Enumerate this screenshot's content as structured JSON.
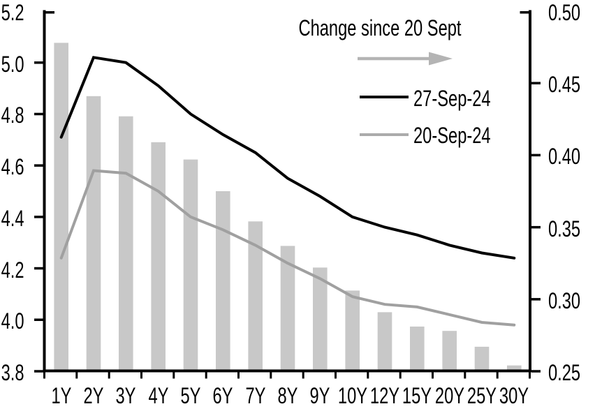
{
  "chart_data": {
    "type": "combo-bar-line",
    "title": "",
    "xlabel": "",
    "ylabel": "",
    "categories": [
      "1Y",
      "2Y",
      "3Y",
      "4Y",
      "5Y",
      "6Y",
      "7Y",
      "8Y",
      "9Y",
      "10Y",
      "12Y",
      "15Y",
      "20Y",
      "25Y",
      "30Y"
    ],
    "series": [
      {
        "name": "Change since 20 Sept",
        "type": "bar",
        "axis": "right",
        "color": "#c8c8c8",
        "values": [
          0.478,
          0.441,
          0.427,
          0.409,
          0.397,
          0.375,
          0.354,
          0.337,
          0.322,
          0.306,
          0.291,
          0.281,
          0.278,
          0.267,
          0.254
        ]
      },
      {
        "name": "27-Sep-24",
        "type": "line",
        "axis": "left",
        "color": "#000000",
        "values": [
          4.71,
          5.02,
          5.0,
          4.91,
          4.8,
          4.72,
          4.65,
          4.55,
          4.48,
          4.4,
          4.36,
          4.33,
          4.29,
          4.26,
          4.24
        ]
      },
      {
        "name": "20-Sep-24",
        "type": "line",
        "axis": "left",
        "color": "#a0a0a0",
        "values": [
          4.24,
          4.58,
          4.57,
          4.5,
          4.4,
          4.35,
          4.29,
          4.22,
          4.16,
          4.09,
          4.06,
          4.05,
          4.02,
          3.99,
          3.98
        ]
      }
    ],
    "left_axis": {
      "min": 3.8,
      "max": 5.2,
      "step": 0.2,
      "ticks": [
        "5.2",
        "5.0",
        "4.8",
        "4.6",
        "4.4",
        "4.2",
        "4.0",
        "3.8"
      ]
    },
    "right_axis": {
      "min": 0.25,
      "max": 0.5,
      "step": 0.05,
      "ticks": [
        "0.50",
        "0.45",
        "0.40",
        "0.35",
        "0.30",
        "0.25"
      ]
    },
    "legend": {
      "position": "top-right-inside",
      "arrow_color": "#b4b4b4"
    },
    "grid": "off"
  }
}
